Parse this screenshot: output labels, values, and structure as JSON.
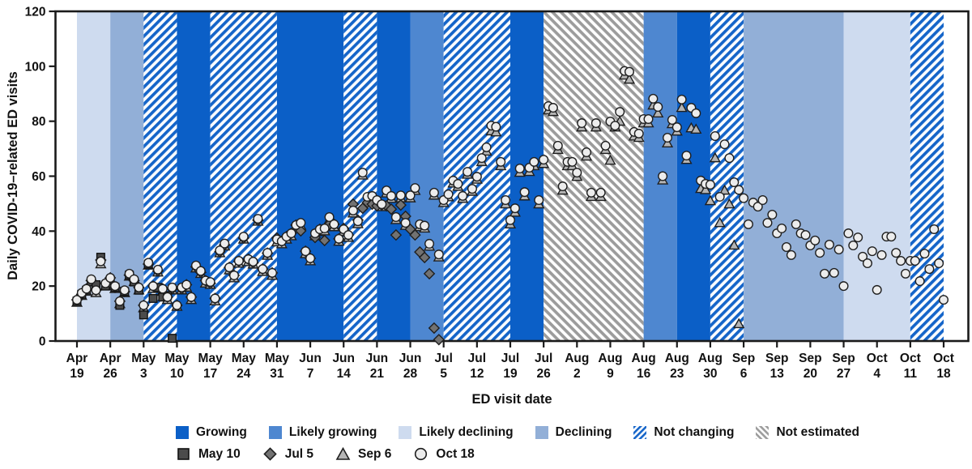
{
  "figure": {
    "y_axis_title": "Daily COVID-19–related ED visits",
    "x_axis_title": "ED visit date"
  },
  "chart_data": {
    "type": "scatter",
    "title": "",
    "xlabel": "ED visit date",
    "ylabel": "Daily COVID-19–related ED visits",
    "ylim": [
      0,
      120
    ],
    "y_ticks": [
      0,
      20,
      40,
      60,
      80,
      100,
      120
    ],
    "x_tick_labels": [
      [
        "Apr",
        "19"
      ],
      [
        "Apr",
        "26"
      ],
      [
        "May",
        "3"
      ],
      [
        "May",
        "10"
      ],
      [
        "May",
        "17"
      ],
      [
        "May",
        "24"
      ],
      [
        "May",
        "31"
      ],
      [
        "Jun",
        "7"
      ],
      [
        "Jun",
        "14"
      ],
      [
        "Jun",
        "21"
      ],
      [
        "Jun",
        "28"
      ],
      [
        "Jul",
        "5"
      ],
      [
        "Jul",
        "12"
      ],
      [
        "Jul",
        "19"
      ],
      [
        "Jul",
        "26"
      ],
      [
        "Aug",
        "2"
      ],
      [
        "Aug",
        "9"
      ],
      [
        "Aug",
        "16"
      ],
      [
        "Aug",
        "23"
      ],
      [
        "Aug",
        "30"
      ],
      [
        "Sep",
        "6"
      ],
      [
        "Sep",
        "13"
      ],
      [
        "Sep",
        "20"
      ],
      [
        "Sep",
        "27"
      ],
      [
        "Oct",
        "4"
      ],
      [
        "Oct",
        "11"
      ],
      [
        "Oct",
        "18"
      ]
    ],
    "grid": false,
    "legend_position": "bottom",
    "categories": {
      "growing": {
        "label": "Growing",
        "style": "solid",
        "fill": "#0b5fc7"
      },
      "likely_growing": {
        "label": "Likely growing",
        "style": "solid",
        "fill": "#4e87d0"
      },
      "likely_declining": {
        "label": "Likely declining",
        "style": "solid",
        "fill": "#cedbef"
      },
      "declining": {
        "label": "Declining",
        "style": "solid",
        "fill": "#92afd7"
      },
      "not_changing": {
        "label": "Not changing",
        "style": "hatch-up",
        "stripe": "#1565c9"
      },
      "not_estimated": {
        "label": "Not estimated",
        "style": "hatch-down",
        "stripe": "#9c9c9c"
      }
    },
    "trend_legend": [
      "growing",
      "likely_growing",
      "likely_declining",
      "declining",
      "not_changing",
      "not_estimated"
    ],
    "bands": [
      {
        "from_week": 0,
        "to_week": 1,
        "category": "likely_declining",
        "from": "Apr 19",
        "to": "Apr 26"
      },
      {
        "from_week": 1,
        "to_week": 2,
        "category": "declining",
        "from": "Apr 26",
        "to": "May 3"
      },
      {
        "from_week": 2,
        "to_week": 3,
        "category": "not_changing",
        "from": "May 3",
        "to": "May 10"
      },
      {
        "from_week": 3,
        "to_week": 4,
        "category": "growing",
        "from": "May 10",
        "to": "May 17"
      },
      {
        "from_week": 4,
        "to_week": 6,
        "category": "not_changing",
        "from": "May 17",
        "to": "May 31"
      },
      {
        "from_week": 6,
        "to_week": 8,
        "category": "growing",
        "from": "May 31",
        "to": "Jun 14"
      },
      {
        "from_week": 8,
        "to_week": 9,
        "category": "not_changing",
        "from": "Jun 14",
        "to": "Jun 21"
      },
      {
        "from_week": 9,
        "to_week": 10,
        "category": "growing",
        "from": "Jun 21",
        "to": "Jun 28"
      },
      {
        "from_week": 10,
        "to_week": 11,
        "category": "likely_growing",
        "from": "Jun 28",
        "to": "Jul 5"
      },
      {
        "from_week": 11,
        "to_week": 13,
        "category": "not_changing",
        "from": "Jul 5",
        "to": "Jul 19"
      },
      {
        "from_week": 13,
        "to_week": 14,
        "category": "growing",
        "from": "Jul 19",
        "to": "Jul 26"
      },
      {
        "from_week": 14,
        "to_week": 17,
        "category": "not_estimated",
        "from": "Jul 26",
        "to": "Aug 16"
      },
      {
        "from_week": 17,
        "to_week": 18,
        "category": "likely_growing",
        "from": "Aug 16",
        "to": "Aug 23"
      },
      {
        "from_week": 18,
        "to_week": 19,
        "category": "growing",
        "from": "Aug 23",
        "to": "Aug 30"
      },
      {
        "from_week": 19,
        "to_week": 20,
        "category": "not_changing",
        "from": "Aug 30",
        "to": "Sep 6"
      },
      {
        "from_week": 20,
        "to_week": 23,
        "category": "declining",
        "from": "Sep 6",
        "to": "Sep 27"
      },
      {
        "from_week": 23,
        "to_week": 25,
        "category": "likely_declining",
        "from": "Sep 27",
        "to": "Oct 11"
      },
      {
        "from_week": 25,
        "to_week": 26,
        "category": "not_changing",
        "from": "Oct 11",
        "to": "Oct 18"
      }
    ],
    "series": [
      {
        "name": "Sep 6",
        "marker": "triangle",
        "fill": "#b5b5b5",
        "stroke": "#1f1f1f",
        "start_day": 0,
        "values": [
          14,
          16.5,
          18,
          21.5,
          17.5,
          28,
          20,
          22,
          19,
          13.5,
          17.5,
          23.5,
          21.5,
          18.5,
          12,
          27.5,
          19,
          25,
          18,
          15,
          18.5,
          12.5,
          18.5,
          19.5,
          15,
          26.5,
          24.5,
          21,
          20.5,
          14.5,
          32,
          34.5,
          25.8,
          22.9,
          28.2,
          37,
          28.8,
          27.9,
          43.5,
          25.2,
          31.1,
          23.8,
          36,
          35.3,
          37,
          38.2,
          41.2,
          42,
          31.7,
          29.1,
          38.2,
          39.7,
          40,
          44.1,
          41.5,
          36.2,
          39.7,
          37.6,
          46.5,
          42.6,
          60.3,
          51.5,
          51.8,
          50.3,
          48.8,
          53.8,
          51.8,
          44.1,
          52,
          42,
          52,
          54.7,
          41.5,
          41,
          34.4,
          53,
          30.5,
          50.3,
          52.4,
          57.4,
          56.2,
          51.8,
          60.6,
          54.4,
          58.8,
          65.2,
          69,
          76.4,
          76,
          63.7,
          49.8,
          42.5,
          46.8,
          61.3,
          52.7,
          61.6,
          63.7,
          49.8,
          64.5,
          84,
          83.4,
          69.6,
          54.8,
          63.7,
          63.7,
          59.8,
          77.8,
          67.2,
          52.5,
          77.8,
          52.5,
          69.6,
          65.7,
          77.8,
          79.9,
          96.7,
          95.2,
          74.5,
          74,
          79.3,
          79.3,
          85.8,
          82.9,
          58.5,
          72,
          79,
          76.3,
          84.9,
          66,
          77.5,
          77,
          55.4,
          55,
          51,
          66.6,
          43,
          54.8,
          49.8,
          34.8,
          6.2
        ]
      },
      {
        "name": "Jul 5",
        "marker": "diamond",
        "fill": "#727272",
        "stroke": "#1f1f1f",
        "start_day": 0,
        "values": [
          15,
          17,
          19,
          22,
          18.5,
          29.5,
          21,
          23,
          19.5,
          14.5,
          18,
          24,
          22,
          19.5,
          13,
          28,
          20,
          25.5,
          19,
          16,
          19,
          13,
          19,
          20.5,
          16,
          27,
          25,
          22,
          21,
          15.5,
          32.5,
          35,
          26.8,
          23.9,
          29,
          37.5,
          29.8,
          28.5,
          44,
          26.2,
          32,
          24.8,
          37.5,
          36.3,
          38,
          39.2,
          42.2,
          40.1,
          32.7,
          30.1,
          37.7,
          40.7,
          36.6,
          42.5,
          42.5,
          37.2,
          41,
          38.6,
          49.8,
          44,
          48.3,
          50.4,
          49.8,
          49.2,
          49.5,
          49.2,
          48,
          38.6,
          49.5,
          45.4,
          40.7,
          38.6,
          32.4,
          30.4,
          24.5,
          4.7,
          0.5
        ]
      },
      {
        "name": "May 10",
        "marker": "square",
        "fill": "#4b4b4b",
        "stroke": "#111111",
        "start_day": 0,
        "values": [
          14.5,
          17,
          18.5,
          21.5,
          20.5,
          30.5,
          20,
          22,
          19.5,
          13,
          18,
          24,
          21.5,
          18.5,
          9.5,
          28,
          15.5,
          19.5,
          16,
          16.5,
          1
        ]
      },
      {
        "name": "Oct 18",
        "marker": "circle",
        "fill": "#ececec",
        "stroke": "#1f1f1f",
        "start_day": 0,
        "values": [
          15,
          17.5,
          19,
          22.5,
          18.5,
          29,
          21,
          23,
          20,
          14.5,
          18.5,
          24.5,
          22.5,
          19.5,
          13,
          28.5,
          20,
          26,
          19,
          16,
          19.5,
          13,
          19.5,
          20.5,
          16,
          27.5,
          25.5,
          22,
          21.5,
          15.5,
          33,
          35.5,
          26.8,
          23.9,
          29.2,
          38,
          29.8,
          28.9,
          44.5,
          26.2,
          32.1,
          24.8,
          37,
          36.3,
          38,
          39.2,
          42.2,
          43,
          32.7,
          30.1,
          39.2,
          40.7,
          41,
          45.1,
          42.5,
          37.2,
          40.7,
          38.6,
          47.5,
          43.6,
          61.3,
          52.5,
          52.8,
          51.3,
          49.8,
          54.8,
          52.8,
          45.1,
          53,
          43,
          53,
          55.7,
          42.5,
          42,
          35.4,
          54,
          31.5,
          51.3,
          53.4,
          58.4,
          57.2,
          52.8,
          61.6,
          55.4,
          59.8,
          66.6,
          70.5,
          78.4,
          78,
          65.2,
          51.3,
          44,
          48.3,
          62.8,
          54.2,
          63.1,
          65.2,
          51.3,
          66,
          85.5,
          84.9,
          71.1,
          56.3,
          65.2,
          65.2,
          61.3,
          79.3,
          68.7,
          54,
          79.3,
          54,
          71.1,
          79.9,
          78.4,
          83.4,
          98.3,
          98,
          76.1,
          75.5,
          80.8,
          80.8,
          88.2,
          85.2,
          60,
          74,
          80.5,
          77.8,
          87.9,
          67.5,
          84.9,
          82.9,
          58.4,
          57.2,
          56.9,
          74.6,
          52.5,
          71.6,
          66.6,
          57.8,
          55,
          52,
          42.5,
          50.4,
          48.9,
          51.3,
          43,
          46,
          39.2,
          41,
          34.2,
          31.3,
          42.5,
          39.2,
          38.6,
          34.8,
          36.6,
          32.1,
          24.5,
          35.1,
          24.8,
          33.3,
          20,
          39.2,
          34.8,
          37.7,
          30.7,
          28.3,
          32.7,
          18.6,
          31.3,
          38,
          38,
          32.1,
          29.2,
          24.5,
          29.2,
          29.2,
          21.8,
          31.8,
          26.2,
          40.7,
          28.3,
          15
        ]
      }
    ],
    "snapshot_legend": [
      {
        "label": "May 10",
        "marker": "square"
      },
      {
        "label": "Jul 5",
        "marker": "diamond"
      },
      {
        "label": "Sep 6",
        "marker": "triangle"
      },
      {
        "label": "Oct 18",
        "marker": "circle"
      }
    ]
  },
  "colors": {
    "axis": "#1a1a1a",
    "text": "#111111",
    "background": "#ffffff"
  }
}
